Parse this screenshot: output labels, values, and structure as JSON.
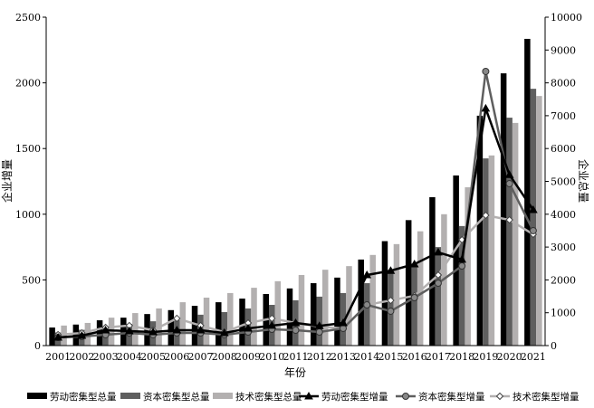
{
  "chart_data": {
    "type": "bar",
    "xlabel": "年份",
    "ylabel_left": "企业增量",
    "ylabel_right": "企业总量",
    "ylim_left": [
      0,
      2500
    ],
    "ylim_right": [
      0,
      10000
    ],
    "yticks_left": [
      0,
      500,
      1000,
      1500,
      2000,
      2500
    ],
    "yticks_right": [
      0,
      1000,
      2000,
      3000,
      4000,
      5000,
      6000,
      7000,
      8000,
      9000,
      10000
    ],
    "grid": false,
    "legend_placement": "bottom",
    "categories": [
      "2001",
      "2002",
      "2003",
      "2004",
      "2005",
      "2006",
      "2007",
      "2008",
      "2009",
      "2010",
      "2011",
      "2012",
      "2013",
      "2014",
      "2015",
      "2016",
      "2017",
      "2018",
      "2019",
      "2020",
      "2021"
    ],
    "series": [
      {
        "name": "劳动密集型总量",
        "kind": "bar",
        "axis": "right",
        "color": "#000000",
        "values": [
          550,
          640,
          770,
          850,
          960,
          1080,
          1210,
          1320,
          1430,
          1570,
          1740,
          1900,
          2070,
          2620,
          3180,
          3820,
          4520,
          5180,
          7000,
          8290,
          9340
        ]
      },
      {
        "name": "资本密集型总量",
        "kind": "bar",
        "axis": "right",
        "color": "#5f5f5f",
        "values": [
          400,
          480,
          580,
          660,
          740,
          860,
          940,
          1020,
          1130,
          1240,
          1380,
          1490,
          1600,
          1900,
          2200,
          2400,
          3000,
          3640,
          5700,
          6940,
          7820
        ]
      },
      {
        "name": "技术密集型总量",
        "kind": "bar",
        "axis": "right",
        "color": "#b3b0b0",
        "values": [
          610,
          690,
          850,
          990,
          1130,
          1320,
          1460,
          1600,
          1760,
          1960,
          2150,
          2310,
          2420,
          2760,
          3090,
          3480,
          4000,
          4820,
          5790,
          6780,
          7600
        ]
      },
      {
        "name": "劳动密集型增量",
        "kind": "line",
        "axis": "left",
        "color": "#000000",
        "marker": "triangle",
        "values": [
          62,
          76,
          117,
          110,
          103,
          117,
          117,
          96,
          131,
          152,
          172,
          150,
          172,
          537,
          570,
          620,
          710,
          655,
          1805,
          1300,
          1033
        ]
      },
      {
        "name": "资本密集型增量",
        "kind": "line",
        "axis": "left",
        "color": "#5f5f5f",
        "marker": "circle",
        "values": [
          62,
          69,
          83,
          96,
          83,
          96,
          96,
          83,
          103,
          124,
          117,
          103,
          131,
          310,
          262,
          365,
          475,
          606,
          2087,
          1233,
          875
        ]
      },
      {
        "name": "技术密集型增量",
        "kind": "line",
        "axis": "left",
        "color": "#b3b0b0",
        "marker": "diamond",
        "values": [
          83,
          96,
          138,
          152,
          117,
          207,
          152,
          103,
          172,
          207,
          172,
          145,
          131,
          310,
          344,
          379,
          537,
          806,
          992,
          957,
          847
        ]
      }
    ]
  }
}
